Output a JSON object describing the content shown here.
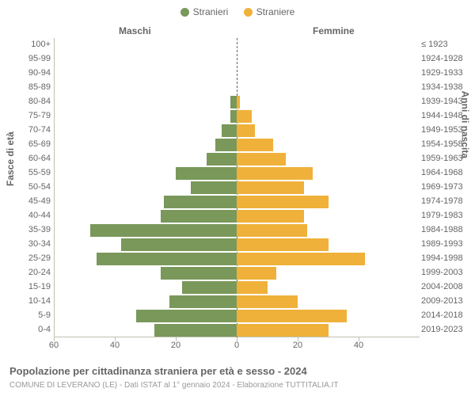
{
  "chart": {
    "type": "population-pyramid",
    "legend": {
      "male": {
        "label": "Stranieri",
        "color": "#79985a"
      },
      "female": {
        "label": "Straniere",
        "color": "#f0b13a"
      }
    },
    "section_headers": {
      "left": "Maschi",
      "right": "Femmine"
    },
    "y_axis_left_title": "Fasce di età",
    "y_axis_right_title": "Anni di nascita",
    "x_axis": {
      "max": 60,
      "ticks": [
        60,
        40,
        20,
        0,
        20,
        40
      ],
      "label_color": "#666666"
    },
    "background_color": "#ffffff",
    "axis_line_color": "#c0c0b0",
    "bar_height_ratio": 0.85,
    "categories": [
      {
        "age": "100+",
        "birth": "≤ 1923",
        "male": 0,
        "female": 0
      },
      {
        "age": "95-99",
        "birth": "1924-1928",
        "male": 0,
        "female": 0
      },
      {
        "age": "90-94",
        "birth": "1929-1933",
        "male": 0,
        "female": 0
      },
      {
        "age": "85-89",
        "birth": "1934-1938",
        "male": 0,
        "female": 0
      },
      {
        "age": "80-84",
        "birth": "1939-1943",
        "male": 2,
        "female": 1
      },
      {
        "age": "75-79",
        "birth": "1944-1948",
        "male": 2,
        "female": 5
      },
      {
        "age": "70-74",
        "birth": "1949-1953",
        "male": 5,
        "female": 6
      },
      {
        "age": "65-69",
        "birth": "1954-1958",
        "male": 7,
        "female": 12
      },
      {
        "age": "60-64",
        "birth": "1959-1963",
        "male": 10,
        "female": 16
      },
      {
        "age": "55-59",
        "birth": "1964-1968",
        "male": 20,
        "female": 25
      },
      {
        "age": "50-54",
        "birth": "1969-1973",
        "male": 15,
        "female": 22
      },
      {
        "age": "45-49",
        "birth": "1974-1978",
        "male": 24,
        "female": 30
      },
      {
        "age": "40-44",
        "birth": "1979-1983",
        "male": 25,
        "female": 22
      },
      {
        "age": "35-39",
        "birth": "1984-1988",
        "male": 48,
        "female": 23
      },
      {
        "age": "30-34",
        "birth": "1989-1993",
        "male": 38,
        "female": 30
      },
      {
        "age": "25-29",
        "birth": "1994-1998",
        "male": 46,
        "female": 42
      },
      {
        "age": "20-24",
        "birth": "1999-2003",
        "male": 25,
        "female": 13
      },
      {
        "age": "15-19",
        "birth": "2004-2008",
        "male": 18,
        "female": 10
      },
      {
        "age": "10-14",
        "birth": "2009-2013",
        "male": 22,
        "female": 20
      },
      {
        "age": "5-9",
        "birth": "2014-2018",
        "male": 33,
        "female": 36
      },
      {
        "age": "0-4",
        "birth": "2019-2023",
        "male": 27,
        "female": 30
      }
    ],
    "footer": {
      "title": "Popolazione per cittadinanza straniera per età e sesso - 2024",
      "subtitle": "COMUNE DI LEVERANO (LE) - Dati ISTAT al 1° gennaio 2024 - Elaborazione TUTTITALIA.IT"
    }
  }
}
